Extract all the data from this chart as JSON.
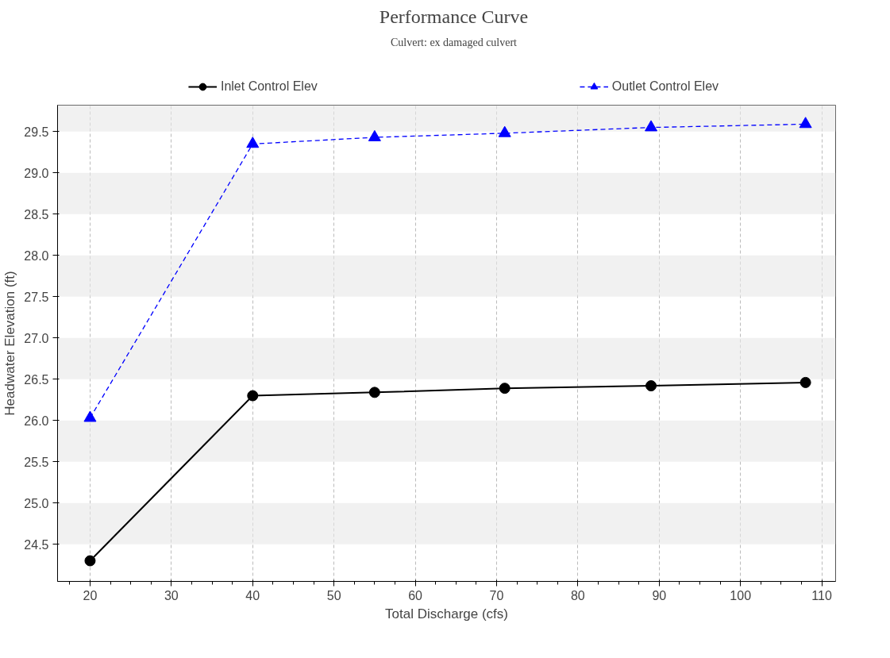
{
  "chart_data": {
    "type": "line",
    "title": "Performance Curve",
    "subtitle": "Culvert: ex damaged culvert",
    "xlabel": "Total Discharge (cfs)",
    "ylabel": "Headwater Elevation (ft)",
    "x": [
      20,
      40,
      55,
      71,
      89,
      108
    ],
    "series": [
      {
        "name": "Inlet Control Elev",
        "color": "#000000",
        "values": [
          24.3,
          26.3,
          26.34,
          26.39,
          26.42,
          26.46
        ],
        "marker": "circle",
        "line_style": "solid"
      },
      {
        "name": "Outlet Control Elev",
        "color": "#0000ff",
        "values": [
          26.03,
          29.35,
          29.43,
          29.48,
          29.55,
          29.59
        ],
        "marker": "triangle",
        "line_style": "dashed"
      }
    ],
    "xlim": [
      16,
      111.7
    ],
    "ylim": [
      24.05,
      29.82
    ],
    "xticks": [
      20,
      30,
      40,
      50,
      60,
      70,
      80,
      90,
      100,
      110
    ],
    "yticks": [
      {
        "value": 24.5,
        "label": "24.5"
      },
      {
        "value": 25,
        "label": "25.0"
      },
      {
        "value": 25.5,
        "label": "25.5"
      },
      {
        "value": 26,
        "label": "26.0"
      },
      {
        "value": 26.5,
        "label": "26.5"
      },
      {
        "value": 27,
        "label": "27.0"
      },
      {
        "value": 27.5,
        "label": "27.5"
      },
      {
        "value": 28,
        "label": "28.0"
      },
      {
        "value": 28.5,
        "label": "28.5"
      },
      {
        "value": 29,
        "label": "29.0"
      },
      {
        "value": 29.5,
        "label": "29.5"
      }
    ],
    "grid": true,
    "legend": "top"
  }
}
